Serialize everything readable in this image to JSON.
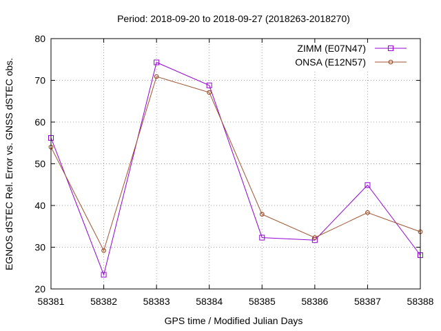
{
  "chart_data": {
    "type": "line",
    "title": "Period: 2018-09-20 to 2018-09-27 (2018263-2018270)",
    "xlabel": "GPS time / Modified Julian Days",
    "ylabel": "EGNOS dSTEC Rel. Error vs. GNSS dSTEC obs.",
    "xlim": [
      58381,
      58388
    ],
    "ylim": [
      20,
      80
    ],
    "x_ticks": [
      "58381",
      "58382",
      "58383",
      "58384",
      "58385",
      "58386",
      "58387",
      "58388"
    ],
    "y_ticks": [
      "20",
      "30",
      "40",
      "50",
      "60",
      "70",
      "80"
    ],
    "grid": true,
    "legend_position": "top-right",
    "x": [
      58381,
      58382,
      58383,
      58384,
      58385,
      58386,
      58387,
      58388
    ],
    "series": [
      {
        "name": "ZIMM (E07N47)",
        "color": "#9400d3",
        "marker": "square",
        "values": [
          56.2,
          23.4,
          74.3,
          68.8,
          32.3,
          31.7,
          44.9,
          28.1
        ]
      },
      {
        "name": "ONSA (E12N57)",
        "color": "#a0522d",
        "marker": "circle",
        "values": [
          54.0,
          29.2,
          70.9,
          67.1,
          37.9,
          32.3,
          38.3,
          33.7
        ]
      }
    ]
  }
}
